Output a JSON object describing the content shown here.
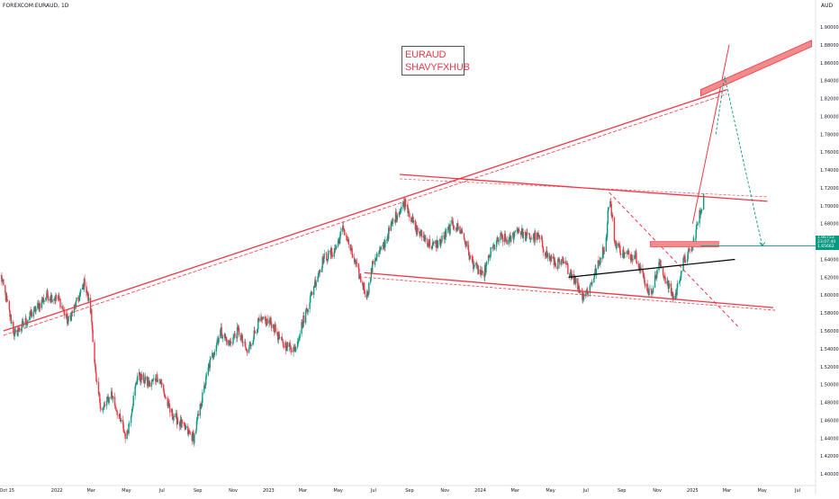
{
  "header": {
    "symbol": "FOREXCOM:EURAUD, 1D",
    "currency": "AUD"
  },
  "watermark": {
    "line1": "EURAUD",
    "line2": "SHAVYFXHUB"
  },
  "price_badge": {
    "price": "1.66753",
    "countdown": "23:07:40",
    "secondary": "1.65662"
  },
  "colors": {
    "up_candle": "#089981",
    "down_candle": "#f23645",
    "trendline_red": "#f23645",
    "support_black": "#000000",
    "projection_green": "#089981",
    "zone_fill": "#f28b8b"
  },
  "chart_data": {
    "type": "candlestick",
    "y_axis": {
      "range": [
        1.39,
        1.9
      ],
      "ticks": [
        "1.40000",
        "1.42000",
        "1.44000",
        "1.46000",
        "1.48000",
        "1.50000",
        "1.52000",
        "1.54000",
        "1.56000",
        "1.58000",
        "1.60000",
        "1.62000",
        "1.64000",
        "1.66000",
        "1.68000",
        "1.70000",
        "1.72000",
        "1.74000",
        "1.76000",
        "1.78000",
        "1.80000",
        "1.82000",
        "1.84000",
        "1.86000",
        "1.88000",
        "1.90000"
      ]
    },
    "x_axis": {
      "range": [
        "2021-09-25",
        "2025-08-01"
      ],
      "ticks": [
        {
          "label": "Oct",
          "date": "2021-10-01"
        },
        {
          "label": "15",
          "date": "2021-10-15"
        },
        {
          "label": "2022",
          "date": "2022-01-01"
        },
        {
          "label": "Mar",
          "date": "2022-03-01"
        },
        {
          "label": "May",
          "date": "2022-05-01"
        },
        {
          "label": "Jul",
          "date": "2022-07-01"
        },
        {
          "label": "Sep",
          "date": "2022-09-01"
        },
        {
          "label": "Nov",
          "date": "2022-11-01"
        },
        {
          "label": "2023",
          "date": "2023-01-01"
        },
        {
          "label": "Mar",
          "date": "2023-03-01"
        },
        {
          "label": "May",
          "date": "2023-05-01"
        },
        {
          "label": "Jul",
          "date": "2023-07-01"
        },
        {
          "label": "Sep",
          "date": "2023-09-01"
        },
        {
          "label": "Nov",
          "date": "2023-11-01"
        },
        {
          "label": "2024",
          "date": "2024-01-01"
        },
        {
          "label": "Mar",
          "date": "2024-03-01"
        },
        {
          "label": "May",
          "date": "2024-05-01"
        },
        {
          "label": "Jul",
          "date": "2024-07-01"
        },
        {
          "label": "Sep",
          "date": "2024-09-01"
        },
        {
          "label": "Nov",
          "date": "2024-11-01"
        },
        {
          "label": "2025",
          "date": "2025-01-01"
        },
        {
          "label": "Mar",
          "date": "2025-03-01"
        },
        {
          "label": "May",
          "date": "2025-05-01"
        },
        {
          "label": "Jul",
          "date": "2025-07-01"
        }
      ]
    },
    "price_path": [
      [
        "2021-09-25",
        1.626
      ],
      [
        "2021-10-20",
        1.555
      ],
      [
        "2021-11-20",
        1.58
      ],
      [
        "2021-12-15",
        1.6
      ],
      [
        "2022-01-05",
        1.595
      ],
      [
        "2022-01-20",
        1.57
      ],
      [
        "2022-02-10",
        1.6
      ],
      [
        "2022-02-18",
        1.615
      ],
      [
        "2022-03-01",
        1.58
      ],
      [
        "2022-03-10",
        1.5
      ],
      [
        "2022-03-20",
        1.47
      ],
      [
        "2022-04-05",
        1.49
      ],
      [
        "2022-04-20",
        1.46
      ],
      [
        "2022-05-01",
        1.44
      ],
      [
        "2022-05-20",
        1.51
      ],
      [
        "2022-06-10",
        1.5
      ],
      [
        "2022-06-25",
        1.51
      ],
      [
        "2022-07-15",
        1.47
      ],
      [
        "2022-08-10",
        1.45
      ],
      [
        "2022-08-25",
        1.44
      ],
      [
        "2022-09-20",
        1.52
      ],
      [
        "2022-10-10",
        1.56
      ],
      [
        "2022-10-25",
        1.545
      ],
      [
        "2022-11-10",
        1.56
      ],
      [
        "2022-11-25",
        1.535
      ],
      [
        "2022-12-15",
        1.57
      ],
      [
        "2023-01-05",
        1.57
      ],
      [
        "2023-01-25",
        1.545
      ],
      [
        "2023-02-15",
        1.54
      ],
      [
        "2023-03-01",
        1.57
      ],
      [
        "2023-03-20",
        1.61
      ],
      [
        "2023-04-05",
        1.64
      ],
      [
        "2023-04-25",
        1.65
      ],
      [
        "2023-05-10",
        1.675
      ],
      [
        "2023-05-25",
        1.645
      ],
      [
        "2023-06-10",
        1.615
      ],
      [
        "2023-06-20",
        1.6
      ],
      [
        "2023-07-01",
        1.64
      ],
      [
        "2023-07-15",
        1.65
      ],
      [
        "2023-08-05",
        1.685
      ],
      [
        "2023-08-25",
        1.705
      ],
      [
        "2023-09-10",
        1.675
      ],
      [
        "2023-09-25",
        1.665
      ],
      [
        "2023-10-10",
        1.655
      ],
      [
        "2023-10-25",
        1.66
      ],
      [
        "2023-11-15",
        1.68
      ],
      [
        "2023-12-01",
        1.67
      ],
      [
        "2023-12-15",
        1.64
      ],
      [
        "2024-01-05",
        1.62
      ],
      [
        "2024-01-20",
        1.65
      ],
      [
        "2024-02-05",
        1.665
      ],
      [
        "2024-02-20",
        1.66
      ],
      [
        "2024-03-05",
        1.675
      ],
      [
        "2024-03-20",
        1.665
      ],
      [
        "2024-04-10",
        1.665
      ],
      [
        "2024-04-25",
        1.645
      ],
      [
        "2024-05-10",
        1.635
      ],
      [
        "2024-05-25",
        1.635
      ],
      [
        "2024-06-10",
        1.62
      ],
      [
        "2024-06-25",
        1.6
      ],
      [
        "2024-07-05",
        1.605
      ],
      [
        "2024-07-20",
        1.63
      ],
      [
        "2024-08-05",
        1.66
      ],
      [
        "2024-08-10",
        1.715
      ],
      [
        "2024-08-20",
        1.66
      ],
      [
        "2024-09-05",
        1.645
      ],
      [
        "2024-09-25",
        1.645
      ],
      [
        "2024-10-05",
        1.625
      ],
      [
        "2024-10-20",
        1.6
      ],
      [
        "2024-11-05",
        1.635
      ],
      [
        "2024-11-20",
        1.61
      ],
      [
        "2024-12-01",
        1.595
      ],
      [
        "2024-12-15",
        1.635
      ],
      [
        "2025-01-01",
        1.655
      ],
      [
        "2025-01-20",
        1.71
      ]
    ],
    "annotations": {
      "rising_channel_top": [
        [
          "2021-10-01",
          1.56
        ],
        [
          "2025-03-01",
          1.83
        ]
      ],
      "rising_channel_top_dashed": [
        [
          "2021-10-01",
          1.555
        ],
        [
          "2025-03-01",
          1.825
        ]
      ],
      "rising_channel_extension": [
        [
          "2025-01-01",
          1.68
        ],
        [
          "2025-03-05",
          1.88
        ]
      ],
      "upper_target_zone": {
        "from": "2025-01-15",
        "to": "2025-07-25",
        "low": 1.83,
        "high": 1.885
      },
      "descending_resistance": [
        [
          "2023-08-15",
          1.735
        ],
        [
          "2025-05-10",
          1.705
        ]
      ],
      "descending_resistance_dashed": [
        [
          "2023-08-15",
          1.73
        ],
        [
          "2025-05-10",
          1.71
        ]
      ],
      "descending_support": [
        [
          "2023-06-15",
          1.625
        ],
        [
          "2025-05-20",
          1.586
        ]
      ],
      "descending_support_dashed": [
        [
          "2023-06-15",
          1.62
        ],
        [
          "2025-05-25",
          1.583
        ]
      ],
      "diagonal_dashed_red": [
        [
          "2024-08-10",
          1.715
        ],
        [
          "2025-03-20",
          1.565
        ]
      ],
      "black_support": [
        [
          "2024-06-01",
          1.62
        ],
        [
          "2025-03-15",
          1.64
        ]
      ],
      "mid_zone": {
        "from": "2024-10-20",
        "to": "2025-02-15",
        "low": 1.654,
        "high": 1.658
      },
      "green_projection": [
        [
          "2025-02-10",
          1.78
        ],
        [
          "2025-02-25",
          1.845
        ],
        [
          "2025-05-01",
          1.655
        ]
      ],
      "current_price_line": {
        "from": "2025-01-15",
        "to": "2025-08-01",
        "value": 1.655
      }
    }
  }
}
